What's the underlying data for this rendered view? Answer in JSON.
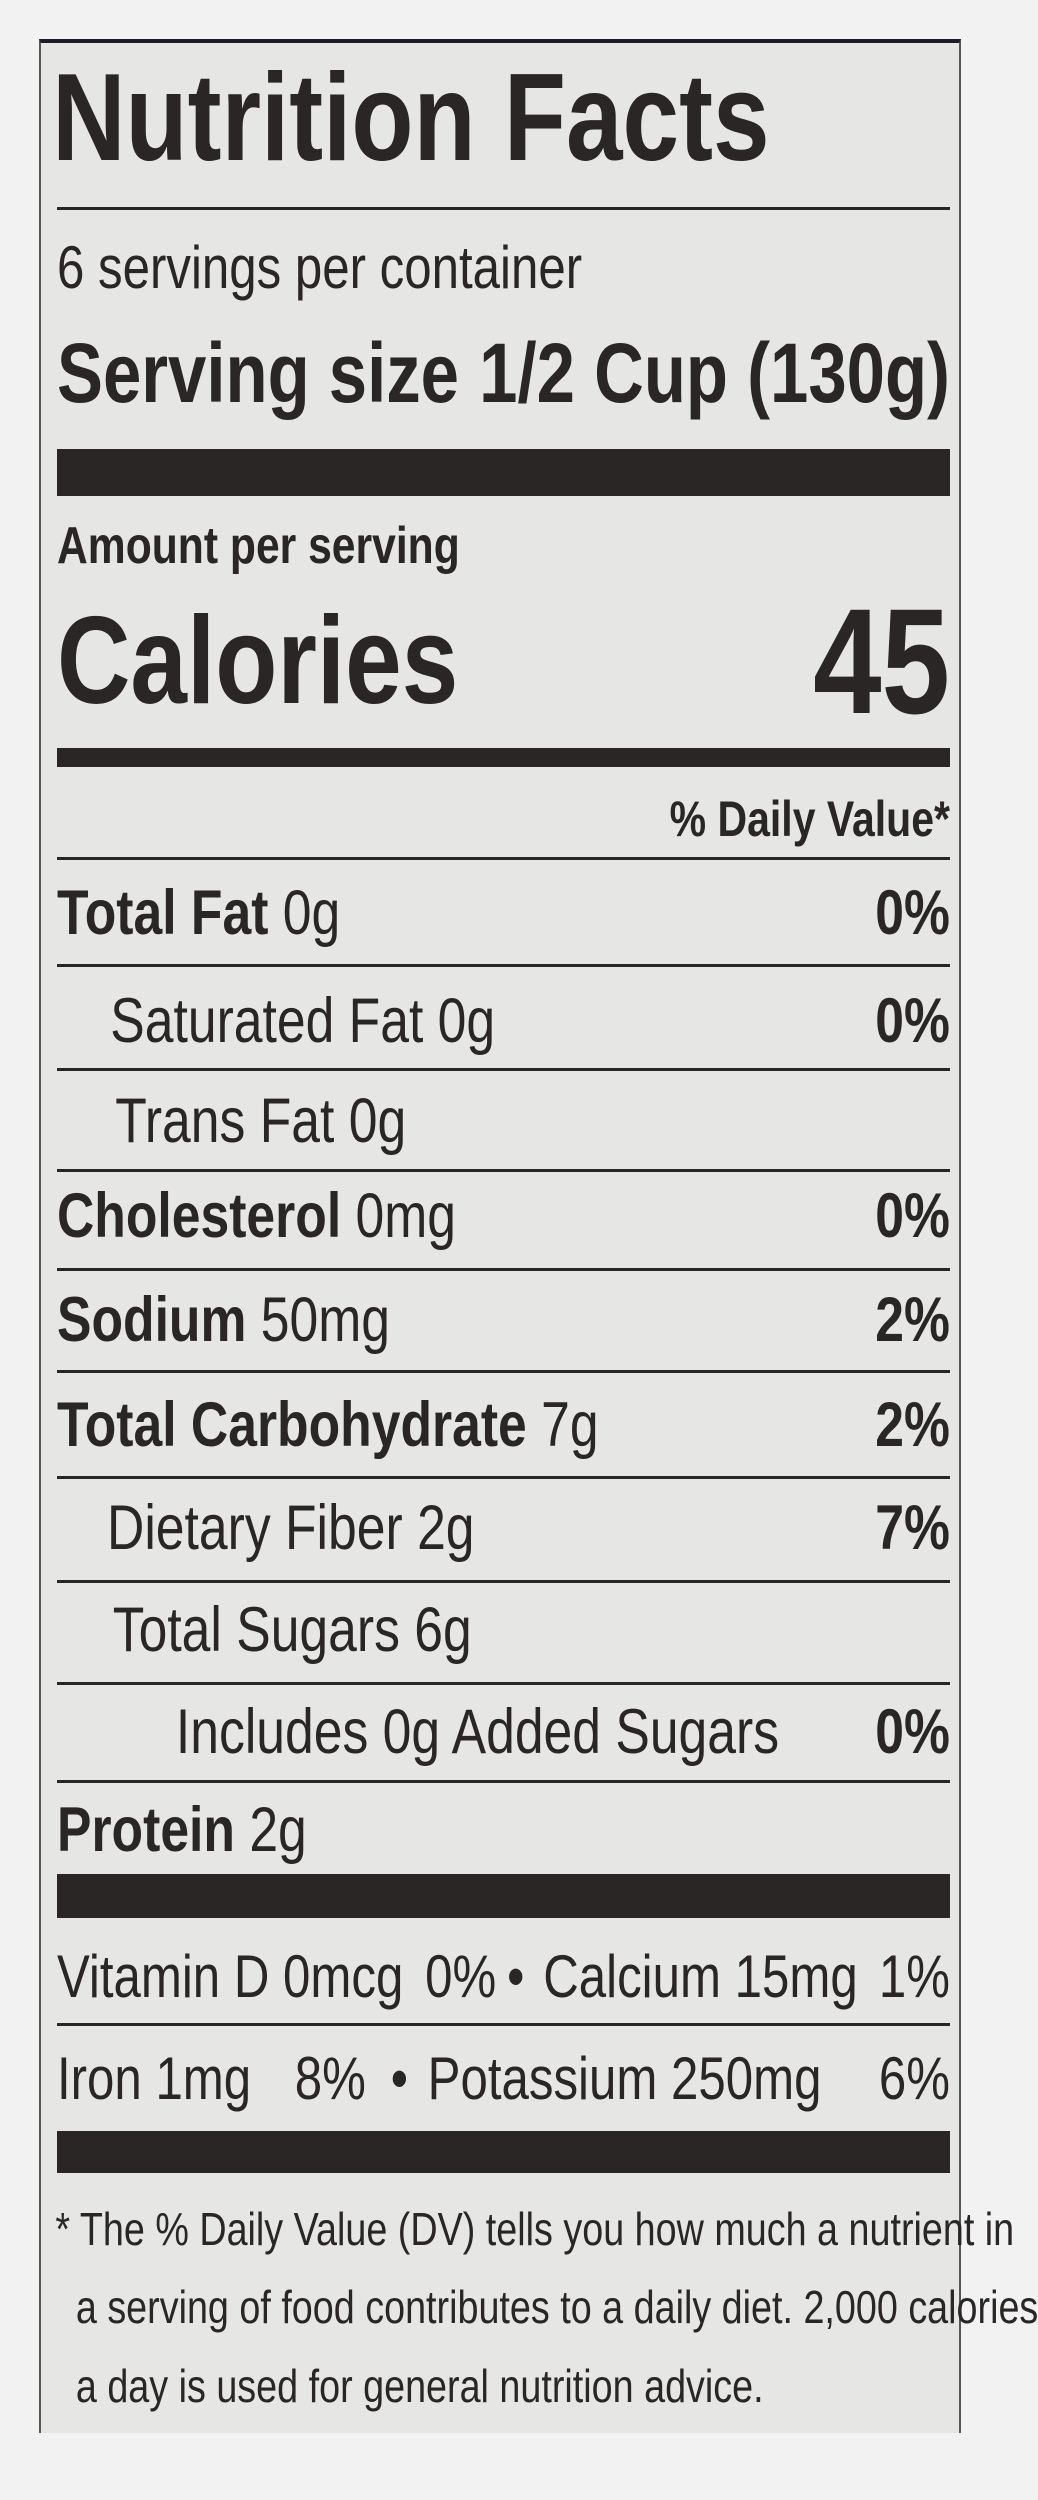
{
  "header": {
    "title": "Nutrition Facts",
    "servings": "6 servings per container",
    "serving_size_label": "Serving size",
    "serving_size_value": "1/2 Cup (130g)"
  },
  "calories": {
    "amount_per_serving": "Amount per serving",
    "label": "Calories",
    "value": "45"
  },
  "daily_value_header": "% Daily Value*",
  "nutrients": [
    {
      "name": "Total Fat",
      "amount": "0g",
      "dv": "0%"
    },
    {
      "name": "Saturated Fat",
      "amount": "0g",
      "dv": "0%"
    },
    {
      "name": "Trans Fat",
      "amount": "0g"
    },
    {
      "name": "Cholesterol",
      "amount": "0mg",
      "dv": "0%"
    },
    {
      "name": "Sodium",
      "amount": "50mg",
      "dv": "2%"
    },
    {
      "name": "Total Carbohydrate",
      "amount": "7g",
      "dv": "2%"
    },
    {
      "name": "Dietary Fiber",
      "amount": "2g",
      "dv": "7%"
    },
    {
      "name": "Total Sugars",
      "amount": "6g"
    },
    {
      "name": "Includes 0g Added Sugars",
      "dv": "0%"
    },
    {
      "name": "Protein",
      "amount": "2g"
    }
  ],
  "vitamins": {
    "separator": "•",
    "items": [
      {
        "name": "Vitamin D 0mcg",
        "dv": "0%"
      },
      {
        "name": "Calcium 15mg",
        "dv": "1%"
      },
      {
        "name": "Iron 1mg",
        "dv": "8%"
      },
      {
        "name": "Potassium 250mg",
        "dv": "6%"
      }
    ]
  },
  "footnote": [
    "* The % Daily Value (DV) tells you how much a nutrient in",
    "a serving of food contributes to a daily diet. 2,000 calories",
    "a day is used for general nutrition advice."
  ]
}
